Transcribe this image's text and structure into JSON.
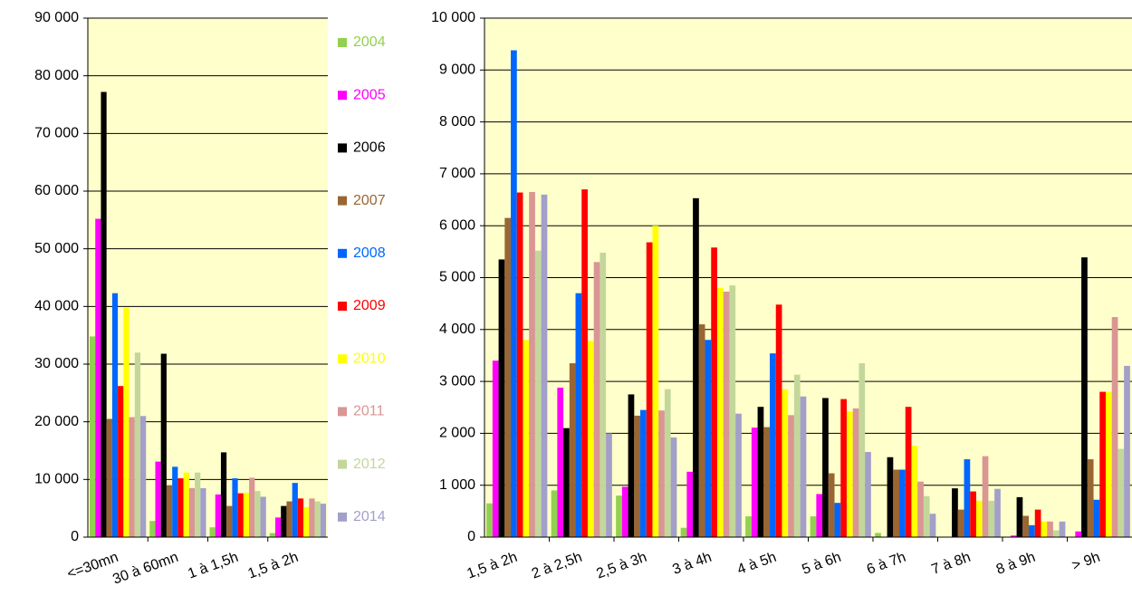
{
  "chart_data": [
    {
      "type": "bar",
      "categories": [
        "<=30mn",
        "30 à 60mn",
        "1 à 1,5h",
        "1,5 à 2h"
      ],
      "ylim": [
        0,
        90000
      ],
      "yticks": [
        {
          "value": 0,
          "label": "0"
        },
        {
          "value": 10000,
          "label": "10 000"
        },
        {
          "value": 20000,
          "label": "20 000"
        },
        {
          "value": 30000,
          "label": "30 000"
        },
        {
          "value": 40000,
          "label": "40 000"
        },
        {
          "value": 50000,
          "label": "50 000"
        },
        {
          "value": 60000,
          "label": "60 000"
        },
        {
          "value": 70000,
          "label": "70 000"
        },
        {
          "value": 80000,
          "label": "80 000"
        },
        {
          "value": 90000,
          "label": "90 000"
        }
      ],
      "grid": true,
      "series": [
        {
          "name": "2004",
          "color": "#92d050",
          "values": [
            34800,
            2800,
            1700,
            700
          ]
        },
        {
          "name": "2005",
          "color": "#ff00ff",
          "values": [
            55200,
            13100,
            7400,
            3400
          ]
        },
        {
          "name": "2006",
          "color": "#000000",
          "values": [
            77200,
            31800,
            14700,
            5400
          ]
        },
        {
          "name": "2007",
          "color": "#996633",
          "values": [
            20500,
            9000,
            5400,
            6200
          ]
        },
        {
          "name": "2008",
          "color": "#0066ff",
          "values": [
            42300,
            12200,
            10200,
            9400
          ]
        },
        {
          "name": "2009",
          "color": "#ff0000",
          "values": [
            26200,
            10200,
            7600,
            6700
          ]
        },
        {
          "name": "2010",
          "color": "#ffff00",
          "values": [
            39800,
            11200,
            7700,
            5200
          ]
        },
        {
          "name": "2011",
          "color": "#d99694",
          "values": [
            20800,
            8500,
            10300,
            6700
          ]
        },
        {
          "name": "2012",
          "color": "#c4d79b",
          "values": [
            32000,
            11200,
            8000,
            6200
          ]
        },
        {
          "name": "2014",
          "color": "#a29fc9",
          "values": [
            21000,
            8500,
            7000,
            5800
          ]
        }
      ]
    },
    {
      "type": "bar",
      "categories": [
        "1,5 à 2h",
        "2 à 2,5h",
        "2,5 à 3h",
        "3 à 4h",
        "4 à 5h",
        "5 à 6h",
        "6 à 7h",
        "7 à 8h",
        "8 à 9h",
        "> 9h"
      ],
      "ylim": [
        0,
        10000
      ],
      "yticks": [
        {
          "value": 0,
          "label": "0"
        },
        {
          "value": 1000,
          "label": "1 000"
        },
        {
          "value": 2000,
          "label": "2 000"
        },
        {
          "value": 3000,
          "label": "3 000"
        },
        {
          "value": 4000,
          "label": "4 000"
        },
        {
          "value": 5000,
          "label": "5 000"
        },
        {
          "value": 6000,
          "label": "6 000"
        },
        {
          "value": 7000,
          "label": "7 000"
        },
        {
          "value": 8000,
          "label": "8 000"
        },
        {
          "value": 9000,
          "label": "9 000"
        },
        {
          "value": 10000,
          "label": "10 000"
        }
      ],
      "grid": true,
      "series": [
        {
          "color": "#92d050",
          "values": [
            650,
            900,
            800,
            180,
            400,
            400,
            80,
            0,
            0,
            0
          ]
        },
        {
          "color": "#ff00ff",
          "values": [
            3400,
            2880,
            970,
            1260,
            2110,
            830,
            0,
            0,
            30,
            110
          ]
        },
        {
          "color": "#000000",
          "values": [
            5350,
            2100,
            2750,
            6530,
            2510,
            2680,
            1540,
            940,
            770,
            5390
          ]
        },
        {
          "color": "#996633",
          "values": [
            6150,
            3350,
            2340,
            4100,
            2120,
            1230,
            1300,
            530,
            410,
            1500
          ]
        },
        {
          "color": "#0066ff",
          "values": [
            9380,
            4700,
            2450,
            3800,
            3540,
            660,
            1300,
            1500,
            230,
            720
          ]
        },
        {
          "color": "#ff0000",
          "values": [
            6640,
            6700,
            5680,
            5580,
            4480,
            2660,
            2510,
            880,
            530,
            2800
          ]
        },
        {
          "color": "#ffff00",
          "values": [
            3800,
            3780,
            6000,
            4800,
            2850,
            2420,
            1760,
            700,
            300,
            2800
          ]
        },
        {
          "color": "#d99694",
          "values": [
            6650,
            5300,
            2440,
            4730,
            2350,
            2480,
            1070,
            1560,
            300,
            4240
          ]
        },
        {
          "color": "#c4d79b",
          "values": [
            5520,
            5480,
            2850,
            4850,
            3130,
            3350,
            790,
            700,
            130,
            1700
          ]
        },
        {
          "color": "#a29fc9",
          "values": [
            6600,
            2000,
            1920,
            2380,
            2710,
            1640,
            450,
            930,
            300,
            3300
          ]
        }
      ]
    }
  ]
}
